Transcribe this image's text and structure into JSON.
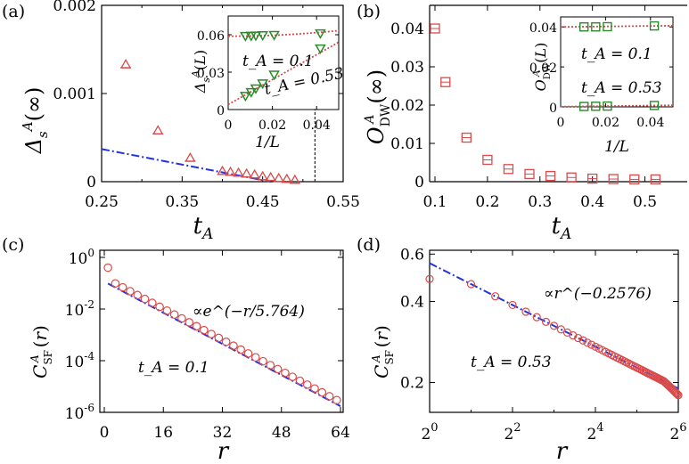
{
  "chart_data": [
    {
      "id": "a",
      "type": "scatter",
      "panel_label": "(a)",
      "xlabel": "t_A",
      "ylabel": "Δ_s^A(∞)",
      "xlim": [
        0.25,
        0.55
      ],
      "ylim": [
        0,
        0.002
      ],
      "xticks": [
        0.25,
        0.35,
        0.45,
        0.55
      ],
      "xtick_labels": [
        "0.25",
        "0.35",
        "0.45",
        "0.55"
      ],
      "yticks": [
        0,
        0.001,
        0.002
      ],
      "ytick_labels": [
        "0",
        "0.001",
        "0.002"
      ],
      "series": [
        {
          "name": "data",
          "marker": "triangle",
          "color": "#d94a4a",
          "x": [
            0.28,
            0.32,
            0.36,
            0.4,
            0.41,
            0.42,
            0.43,
            0.44,
            0.45,
            0.46,
            0.47,
            0.48,
            0.49
          ],
          "y": [
            0.00133,
            0.00058,
            0.00027,
            0.00012,
            0.00011,
            0.0001,
            9e-05,
            8e-05,
            6e-05,
            5e-05,
            4e-05,
            3e-05,
            2e-05
          ]
        },
        {
          "name": "fit",
          "style": "dashdot",
          "color": "#2233dd",
          "x": [
            0.25,
            0.46
          ],
          "y": [
            0.00037,
            0.0
          ]
        }
      ],
      "vline": {
        "x": 0.515,
        "style": "dashed"
      },
      "inset": {
        "xlim": [
          0,
          0.05
        ],
        "ylim": [
          0,
          0.075
        ],
        "xticks": [
          0,
          0.02,
          0.04
        ],
        "xtick_labels": [
          "0",
          "0.02",
          "0.04"
        ],
        "yticks": [
          0,
          0.03,
          0.06
        ],
        "ytick_labels": [
          "0",
          "0.03",
          "0.06"
        ],
        "xlabel": "1/L",
        "ylabel": "Δ_s^A(L)",
        "series": [
          {
            "name": "t_A = 0.1",
            "marker": "triangle-down",
            "color": "#2a8a2a",
            "x": [
              0.0078,
              0.0104,
              0.0125,
              0.0156,
              0.0208,
              0.0417
            ],
            "y": [
              0.059,
              0.0592,
              0.0594,
              0.0596,
              0.0598,
              0.0612
            ]
          },
          {
            "name": "t_A = 0.53",
            "marker": "triangle-down",
            "color": "#2a8a2a",
            "x": [
              0.0078,
              0.0104,
              0.0125,
              0.0156,
              0.0208,
              0.0417
            ],
            "y": [
              0.011,
              0.014,
              0.017,
              0.021,
              0.028,
              0.049
            ]
          }
        ],
        "annotations": [
          "t_A = 0.1",
          "t_A = 0.53"
        ]
      }
    },
    {
      "id": "b",
      "type": "scatter",
      "panel_label": "(b)",
      "xlabel": "t_A",
      "ylabel": "O_DW^A(∞)",
      "xlim": [
        0.1,
        0.55
      ],
      "ylim": [
        0,
        0.04
      ],
      "xticks": [
        0.1,
        0.2,
        0.3,
        0.4,
        0.5
      ],
      "xtick_labels": [
        "0.1",
        "0.2",
        "0.3",
        "0.4",
        "0.5"
      ],
      "yticks": [
        0,
        0.01,
        0.02,
        0.03,
        0.04
      ],
      "ytick_labels": [
        "0",
        "0.01",
        "0.02",
        "0.03",
        "0.04"
      ],
      "series": [
        {
          "name": "data",
          "marker": "square",
          "color": "#d94a4a",
          "x": [
            0.1,
            0.12,
            0.16,
            0.2,
            0.24,
            0.28,
            0.32,
            0.36,
            0.4,
            0.44,
            0.48,
            0.52
          ],
          "y": [
            0.04,
            0.026,
            0.0115,
            0.0057,
            0.0033,
            0.002,
            0.0015,
            0.0011,
            0.0008,
            0.0007,
            0.0006,
            0.0006
          ]
        }
      ],
      "inset": {
        "xlim": [
          0,
          0.05
        ],
        "ylim": [
          0,
          0.045
        ],
        "xticks": [
          0,
          0.02,
          0.04
        ],
        "xtick_labels": [
          "0",
          "0.02",
          "0.04"
        ],
        "yticks": [
          0,
          0.02,
          0.04
        ],
        "ytick_labels": [
          "0",
          "0.02",
          "0.04"
        ],
        "xlabel": "1/L",
        "ylabel": "O_DW^A(L)",
        "series": [
          {
            "name": "t_A = 0.1",
            "marker": "square",
            "color": "#2a8a2a",
            "x": [
              0.0104,
              0.0156,
              0.0208,
              0.0417
            ],
            "y": [
              0.04,
              0.04,
              0.0401,
              0.0405
            ]
          },
          {
            "name": "t_A = 0.53",
            "marker": "square",
            "color": "#2a8a2a",
            "x": [
              0.0104,
              0.0156,
              0.0208,
              0.0417
            ],
            "y": [
              0.0002,
              0.0003,
              0.0004,
              0.0007
            ]
          }
        ],
        "annotations": [
          "t_A = 0.1",
          "t_A = 0.53"
        ]
      }
    },
    {
      "id": "c",
      "type": "scatter",
      "panel_label": "(c)",
      "xlabel": "r",
      "ylabel": "C_SF^A(r)",
      "yscale": "log",
      "xlim": [
        0,
        64
      ],
      "ylim_log10": [
        -6,
        0
      ],
      "xticks": [
        0,
        16,
        32,
        48,
        64
      ],
      "xtick_labels": [
        "0",
        "16",
        "32",
        "48",
        "64"
      ],
      "yticks_log10": [
        -6,
        -4,
        -2,
        0
      ],
      "series": [
        {
          "name": "data",
          "marker": "circle",
          "color": "#d94a4a",
          "model": "exp",
          "prefactor": 0.165,
          "r_range": [
            1,
            63
          ]
        },
        {
          "name": "fit",
          "style": "dashdot",
          "color": "#2233dd",
          "model": "exp",
          "prefactor": 0.115,
          "r_range": [
            1,
            64
          ]
        }
      ],
      "fit_correlation_length": 5.764,
      "annotations": {
        "fit": "∝e^(−r/5.764)",
        "param": "t_A = 0.1"
      }
    },
    {
      "id": "d",
      "type": "scatter",
      "panel_label": "(d)",
      "xlabel": "r",
      "ylabel": "C_SF^A(r)",
      "xscale": "log2",
      "yscale": "log",
      "xlim": [
        1,
        64
      ],
      "ylim": [
        0.155,
        0.62
      ],
      "xticks": [
        1,
        4,
        16,
        64
      ],
      "xtick_exponents": [
        "0",
        "2",
        "4",
        "6"
      ],
      "yticks": [
        0.2,
        0.4,
        0.6
      ],
      "ytick_labels": [
        "0.2",
        "0.4",
        "0.6"
      ],
      "series": [
        {
          "name": "fit",
          "style": "dashdot",
          "color": "#2233dd",
          "model": "power",
          "prefactor": 0.555,
          "exponent": -0.2576
        },
        {
          "name": "data",
          "marker": "circle",
          "color": "#d94a4a",
          "model": "power",
          "prefactor": 0.555,
          "exponent": -0.2576,
          "r_range": [
            1,
            64
          ]
        }
      ],
      "fit_exponent": -0.2576,
      "annotations": {
        "fit": "∝r^(−0.2576)",
        "param": "t_A = 0.53"
      }
    }
  ]
}
